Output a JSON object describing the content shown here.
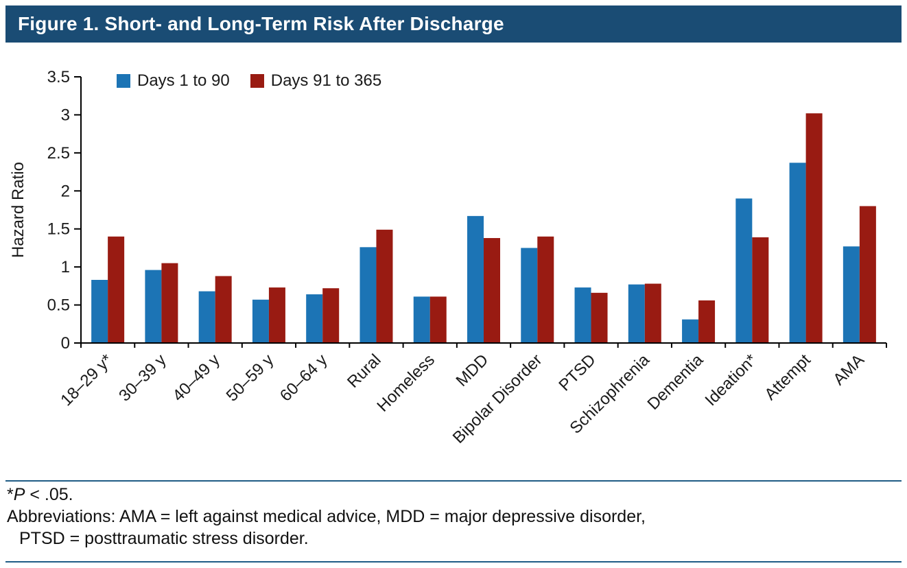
{
  "header": {
    "title": "Figure 1. Short- and Long-Term Risk After Discharge",
    "bar_color": "#1A4C74"
  },
  "chart_data": {
    "type": "bar",
    "title": "Figure 1. Short- and Long-Term Risk After Discharge",
    "xlabel": "",
    "ylabel": "Hazard Ratio",
    "ylim": [
      0,
      3.5
    ],
    "ytick_step": 0.5,
    "grid": false,
    "legend_position": "top-left",
    "categories": [
      "18–29 y*",
      "30–39 y",
      "40–49 y",
      "50–59 y",
      "60–64 y",
      "Rural",
      "Homeless",
      "MDD",
      "Bipolar Disorder",
      "PTSD",
      "Schizophrenia",
      "Dementia",
      "Ideation*",
      "Attempt",
      "AMA"
    ],
    "series": [
      {
        "name": "Days 1 to 90",
        "color": "#1C74B5",
        "values": [
          0.83,
          0.96,
          0.68,
          0.57,
          0.64,
          1.26,
          0.61,
          1.67,
          1.25,
          0.73,
          0.77,
          0.31,
          1.9,
          2.37,
          1.27
        ]
      },
      {
        "name": "Days 91 to 365",
        "color": "#991B12",
        "values": [
          1.4,
          1.05,
          0.88,
          0.73,
          0.72,
          1.49,
          0.61,
          1.38,
          1.4,
          0.66,
          0.78,
          0.56,
          1.39,
          3.02,
          1.8
        ]
      }
    ]
  },
  "footnotes": {
    "significance": {
      "star": "*",
      "p": "P",
      "rest": " < .05."
    },
    "abbreviations_line1": "Abbreviations: AMA = left against medical advice, MDD = major depressive disorder,",
    "abbreviations_line2": "PTSD = posttraumatic stress disorder.",
    "rule_color": "#1F5C85"
  }
}
